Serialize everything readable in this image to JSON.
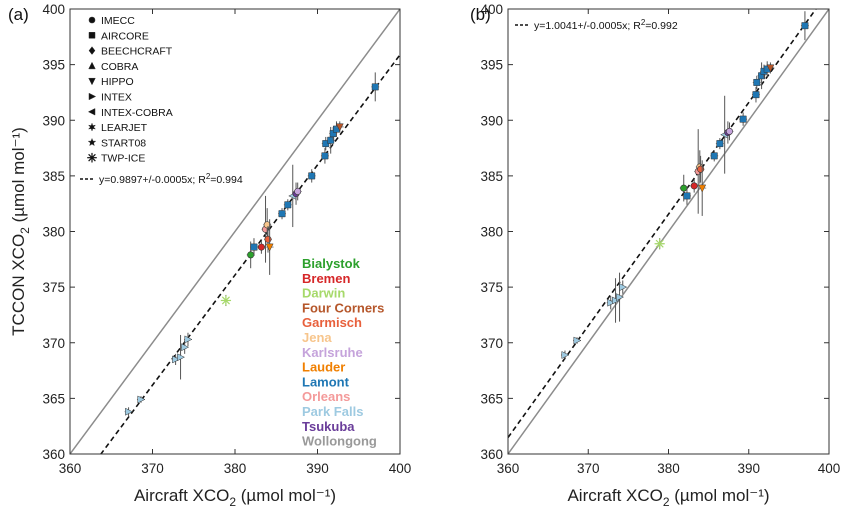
{
  "chart_data": [
    {
      "panel_label": "(a)",
      "type": "scatter",
      "xlabel": "Aircraft XCO",
      "ylabel": "TCCON XCO",
      "label_sub": "2",
      "label_units": "(µmol mol⁻¹)",
      "xlim": [
        360,
        400
      ],
      "ylim": [
        360,
        400
      ],
      "xticks": [
        360,
        370,
        380,
        390,
        400
      ],
      "yticks": [
        360,
        365,
        370,
        375,
        380,
        385,
        390,
        395,
        400
      ],
      "one_to_one_line": true,
      "fit": {
        "label": "y=0.9897+/-0.0005x; R",
        "r2_text": "=0.994",
        "slope": 0.9897,
        "r2": 0.994
      },
      "legend_markers": [
        {
          "name": "IMECC",
          "symbol": "circle"
        },
        {
          "name": "AIRCORE",
          "symbol": "square"
        },
        {
          "name": "BEECHCRAFT",
          "symbol": "diamond"
        },
        {
          "name": "COBRA",
          "symbol": "triangle-up"
        },
        {
          "name": "HIPPO",
          "symbol": "triangle-down"
        },
        {
          "name": "INTEX",
          "symbol": "triangle-right"
        },
        {
          "name": "INTEX-COBRA",
          "symbol": "triangle-left"
        },
        {
          "name": "LEARJET",
          "symbol": "hexagram"
        },
        {
          "name": "START08",
          "symbol": "star"
        },
        {
          "name": "TWP-ICE",
          "symbol": "asterisk"
        }
      ],
      "legend_sites": [
        {
          "name": "Bialystok",
          "color": "#2ca02c"
        },
        {
          "name": "Bremen",
          "color": "#d62728"
        },
        {
          "name": "Darwin",
          "color": "#a6d96a"
        },
        {
          "name": "Four Corners",
          "color": "#b5562a"
        },
        {
          "name": "Garmisch",
          "color": "#e8603c"
        },
        {
          "name": "Jena",
          "color": "#f7c58c"
        },
        {
          "name": "Karlsruhe",
          "color": "#c5a3db"
        },
        {
          "name": "Lauder",
          "color": "#f07f00"
        },
        {
          "name": "Lamont",
          "color": "#1f77b4"
        },
        {
          "name": "Orleans",
          "color": "#f49a9a"
        },
        {
          "name": "Park Falls",
          "color": "#9ecae1"
        },
        {
          "name": "Tsukuba",
          "color": "#6a3d9a"
        },
        {
          "name": "Wollongong",
          "color": "#999999"
        }
      ],
      "points": [
        {
          "x": 367.1,
          "y": 363.8,
          "err": 0.4,
          "site": "Park Falls",
          "symbol": "triangle-right"
        },
        {
          "x": 368.6,
          "y": 364.9,
          "err": 0.3,
          "site": "Park Falls",
          "symbol": "triangle-right"
        },
        {
          "x": 372.8,
          "y": 368.5,
          "err": 0.5,
          "site": "Park Falls",
          "symbol": "triangle-right"
        },
        {
          "x": 373.4,
          "y": 368.7,
          "err": 2.0,
          "site": "Park Falls",
          "symbol": "triangle-right"
        },
        {
          "x": 373.9,
          "y": 369.6,
          "err": 0.6,
          "site": "Park Falls",
          "symbol": "triangle-right"
        },
        {
          "x": 374.3,
          "y": 370.3,
          "err": 0.6,
          "site": "Park Falls",
          "symbol": "triangle-right"
        },
        {
          "x": 378.9,
          "y": 373.8,
          "err": 0.5,
          "site": "Darwin",
          "symbol": "asterisk"
        },
        {
          "x": 381.9,
          "y": 377.9,
          "err": 1.2,
          "site": "Bialystok",
          "symbol": "circle"
        },
        {
          "x": 382.3,
          "y": 378.6,
          "err": 0.8,
          "site": "Lamont",
          "symbol": "square"
        },
        {
          "x": 383.2,
          "y": 378.6,
          "err": 0.6,
          "site": "Bremen",
          "symbol": "circle"
        },
        {
          "x": 383.7,
          "y": 380.2,
          "err": 3.0,
          "site": "Orleans",
          "symbol": "circle"
        },
        {
          "x": 383.9,
          "y": 380.6,
          "err": 1.5,
          "site": "Jena",
          "symbol": "circle"
        },
        {
          "x": 384.0,
          "y": 379.3,
          "err": 1.2,
          "site": "Garmisch",
          "symbol": "circle"
        },
        {
          "x": 384.2,
          "y": 378.6,
          "err": 2.5,
          "site": "Lauder",
          "symbol": "triangle-down"
        },
        {
          "x": 385.7,
          "y": 381.6,
          "err": 0.5,
          "site": "Lamont",
          "symbol": "square"
        },
        {
          "x": 386.4,
          "y": 382.4,
          "err": 0.5,
          "site": "Lamont",
          "symbol": "square"
        },
        {
          "x": 387.0,
          "y": 383.2,
          "err": 2.8,
          "site": "Park Falls",
          "symbol": "triangle-left"
        },
        {
          "x": 387.4,
          "y": 383.4,
          "err": 1.0,
          "site": "Tsukuba",
          "symbol": "circle"
        },
        {
          "x": 387.6,
          "y": 383.6,
          "err": 0.8,
          "site": "Karlsruhe",
          "symbol": "circle"
        },
        {
          "x": 389.3,
          "y": 385.0,
          "err": 0.6,
          "site": "Lamont",
          "symbol": "square"
        },
        {
          "x": 390.9,
          "y": 386.8,
          "err": 0.7,
          "site": "Lamont",
          "symbol": "square"
        },
        {
          "x": 391.0,
          "y": 387.9,
          "err": 0.6,
          "site": "Lamont",
          "symbol": "square"
        },
        {
          "x": 391.6,
          "y": 388.2,
          "err": 1.2,
          "site": "Lamont",
          "symbol": "square"
        },
        {
          "x": 391.9,
          "y": 388.8,
          "err": 0.6,
          "site": "Lamont",
          "symbol": "square"
        },
        {
          "x": 392.3,
          "y": 389.2,
          "err": 0.7,
          "site": "Lamont",
          "symbol": "square"
        },
        {
          "x": 392.7,
          "y": 389.4,
          "err": 0.5,
          "site": "Four Corners",
          "symbol": "triangle-down"
        },
        {
          "x": 397.0,
          "y": 393.0,
          "err": 1.3,
          "site": "Lamont",
          "symbol": "square"
        }
      ]
    },
    {
      "panel_label": "(b)",
      "type": "scatter",
      "xlabel": "Aircraft XCO",
      "label_sub": "2",
      "label_units": "(µmol mol⁻¹)",
      "xlim": [
        360,
        400
      ],
      "ylim": [
        360,
        400
      ],
      "xticks": [
        360,
        370,
        380,
        390,
        400
      ],
      "yticks": [
        360,
        365,
        370,
        375,
        380,
        385,
        390,
        395,
        400
      ],
      "one_to_one_line": true,
      "fit": {
        "label": "y=1.0041+/-0.0005x; R",
        "r2_text": "=0.992",
        "slope": 1.0041,
        "r2": 0.992
      },
      "points": [
        {
          "x": 367.1,
          "y": 368.9,
          "err": 0.4,
          "site": "Park Falls",
          "symbol": "triangle-right"
        },
        {
          "x": 368.6,
          "y": 370.2,
          "err": 0.3,
          "site": "Park Falls",
          "symbol": "triangle-right"
        },
        {
          "x": 372.8,
          "y": 373.6,
          "err": 0.6,
          "site": "Park Falls",
          "symbol": "triangle-right"
        },
        {
          "x": 373.4,
          "y": 373.8,
          "err": 2.0,
          "site": "Park Falls",
          "symbol": "triangle-right"
        },
        {
          "x": 373.9,
          "y": 374.1,
          "err": 2.2,
          "site": "Park Falls",
          "symbol": "triangle-right"
        },
        {
          "x": 374.3,
          "y": 375.0,
          "err": 0.6,
          "site": "Park Falls",
          "symbol": "triangle-right"
        },
        {
          "x": 378.9,
          "y": 378.9,
          "err": 0.5,
          "site": "Darwin",
          "symbol": "asterisk"
        },
        {
          "x": 381.9,
          "y": 383.9,
          "err": 1.2,
          "site": "Bialystok",
          "symbol": "circle"
        },
        {
          "x": 382.3,
          "y": 383.2,
          "err": 0.8,
          "site": "Lamont",
          "symbol": "square"
        },
        {
          "x": 383.2,
          "y": 384.1,
          "err": 0.6,
          "site": "Bremen",
          "symbol": "circle"
        },
        {
          "x": 383.7,
          "y": 385.4,
          "err": 3.8,
          "site": "Orleans",
          "symbol": "circle"
        },
        {
          "x": 383.9,
          "y": 385.8,
          "err": 1.5,
          "site": "Jena",
          "symbol": "circle"
        },
        {
          "x": 384.0,
          "y": 385.6,
          "err": 1.2,
          "site": "Garmisch",
          "symbol": "circle"
        },
        {
          "x": 384.2,
          "y": 383.9,
          "err": 2.5,
          "site": "Lauder",
          "symbol": "triangle-down"
        },
        {
          "x": 385.7,
          "y": 386.8,
          "err": 0.5,
          "site": "Lamont",
          "symbol": "square"
        },
        {
          "x": 386.4,
          "y": 387.9,
          "err": 0.5,
          "site": "Lamont",
          "symbol": "square"
        },
        {
          "x": 387.0,
          "y": 388.7,
          "err": 3.5,
          "site": "Park Falls",
          "symbol": "triangle-left"
        },
        {
          "x": 387.4,
          "y": 388.9,
          "err": 1.0,
          "site": "Tsukuba",
          "symbol": "circle"
        },
        {
          "x": 387.6,
          "y": 389.0,
          "err": 0.8,
          "site": "Karlsruhe",
          "symbol": "circle"
        },
        {
          "x": 389.3,
          "y": 390.1,
          "err": 0.6,
          "site": "Lamont",
          "symbol": "square"
        },
        {
          "x": 390.9,
          "y": 392.3,
          "err": 0.7,
          "site": "Lamont",
          "symbol": "square"
        },
        {
          "x": 391.0,
          "y": 393.4,
          "err": 0.6,
          "site": "Lamont",
          "symbol": "square"
        },
        {
          "x": 391.6,
          "y": 394.0,
          "err": 1.2,
          "site": "Lamont",
          "symbol": "square"
        },
        {
          "x": 391.9,
          "y": 394.4,
          "err": 0.6,
          "site": "Lamont",
          "symbol": "square"
        },
        {
          "x": 392.3,
          "y": 394.6,
          "err": 0.7,
          "site": "Lamont",
          "symbol": "square"
        },
        {
          "x": 392.7,
          "y": 394.7,
          "err": 0.5,
          "site": "Four Corners",
          "symbol": "triangle-down"
        },
        {
          "x": 397.0,
          "y": 398.5,
          "err": 1.3,
          "site": "Lamont",
          "symbol": "square"
        }
      ]
    }
  ]
}
